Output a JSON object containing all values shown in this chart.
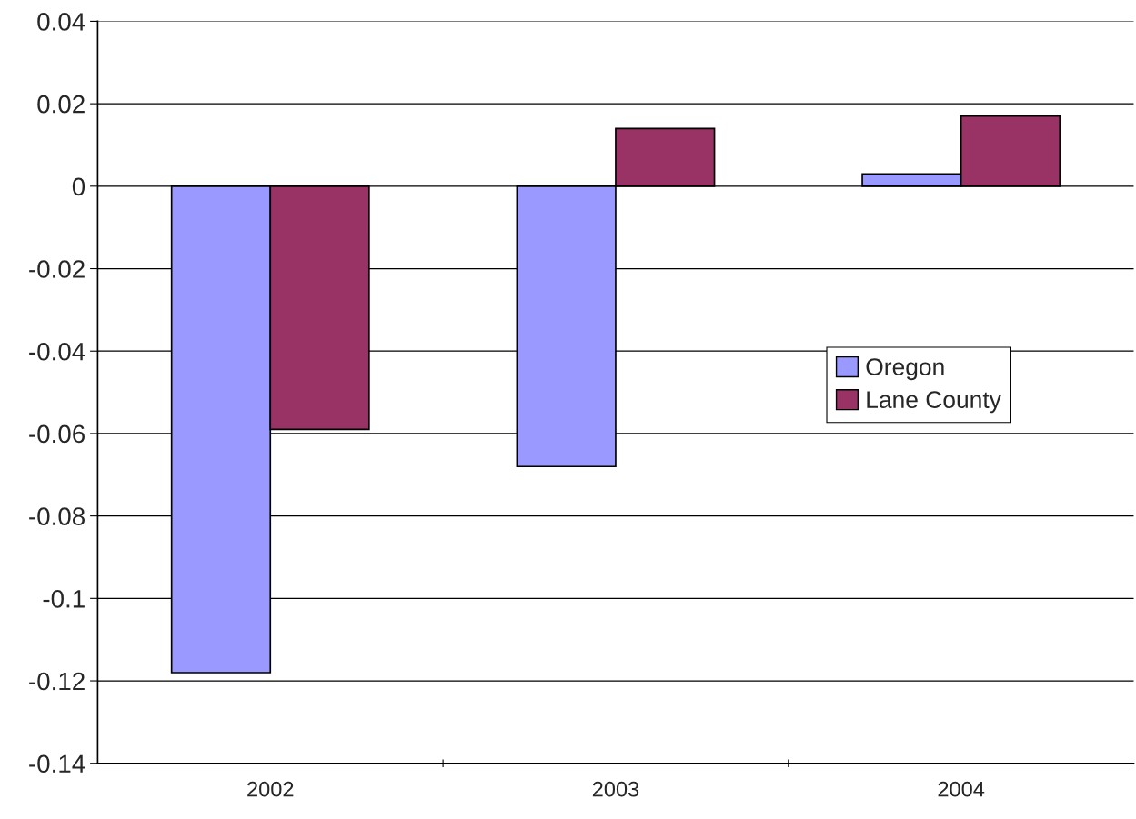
{
  "chart_data": {
    "type": "bar",
    "categories": [
      "2002",
      "2003",
      "2004"
    ],
    "series": [
      {
        "name": "Oregon",
        "color": "#9999ff",
        "values": [
          -0.118,
          -0.068,
          0.003
        ]
      },
      {
        "name": "Lane County",
        "color": "#993366",
        "values": [
          -0.059,
          0.014,
          0.017
        ]
      }
    ],
    "ylim": [
      -0.14,
      0.04
    ],
    "yticks": [
      -0.14,
      -0.12,
      -0.1,
      -0.08,
      -0.06,
      -0.04,
      -0.02,
      0,
      0.02,
      0.04
    ],
    "grid": "y",
    "legend": "right"
  }
}
